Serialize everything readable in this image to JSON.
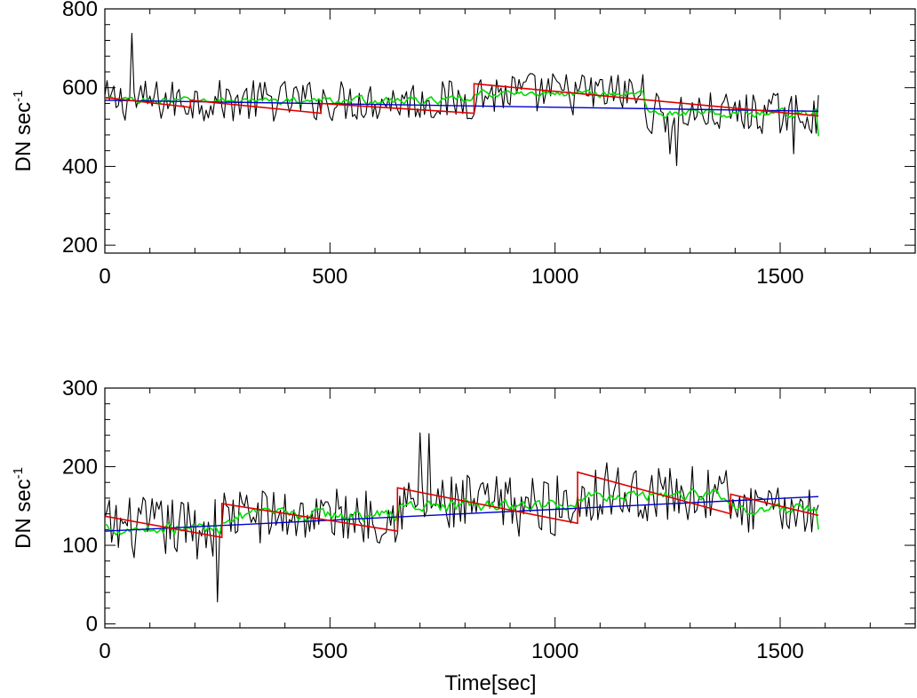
{
  "chart_data": [
    {
      "type": "line",
      "ylabel": "DN sec",
      "ylabel_sup": "-1",
      "xlabel": "",
      "xlim": [
        0,
        1800
      ],
      "ylim": [
        180,
        800
      ],
      "x_ticks": [
        0,
        500,
        1000,
        1500
      ],
      "x_tick_labels": [
        "0",
        "500",
        "1000",
        "1500"
      ],
      "y_ticks": [
        200,
        400,
        600,
        800
      ],
      "y_tick_labels": [
        "200",
        "400",
        "600",
        "800"
      ],
      "grid": false,
      "series": [
        {
          "color": "#000000",
          "style": "raw-noisy",
          "x_range": [
            0,
            1585
          ],
          "segments": [
            [
              0,
              820,
              567,
              33
            ],
            [
              820,
              1200,
              585,
              35
            ],
            [
              1200,
              1585,
              535,
              33
            ]
          ],
          "spikes": [
            [
              62,
              738
            ],
            [
              1270,
              402
            ],
            [
              1255,
              432
            ],
            [
              1530,
              432
            ]
          ]
        },
        {
          "color": "#00dd00",
          "style": "smoothed",
          "x_range": [
            0,
            1585
          ],
          "segments": [
            [
              0,
              820,
              567,
              12
            ],
            [
              820,
              1200,
              585,
              12
            ],
            [
              1200,
              1585,
              535,
              14
            ]
          ],
          "end_value": 477
        },
        {
          "color": "#0000cc",
          "style": "linear-fit",
          "x": [
            0,
            1585
          ],
          "y": [
            568,
            540
          ]
        },
        {
          "color": "#dd0000",
          "style": "piecewise-fit",
          "pieces": [
            [
              [
                0,
                575
              ],
              [
                190,
                550
              ]
            ],
            [
              [
                190,
                568
              ],
              [
                480,
                535
              ]
            ],
            [
              [
                480,
                560
              ],
              [
                820,
                535
              ]
            ],
            [
              [
                820,
                610
              ],
              [
                1585,
                528
              ]
            ]
          ]
        }
      ]
    },
    {
      "type": "line",
      "ylabel": "DN sec",
      "ylabel_sup": "-1",
      "xlabel": "Time[sec]",
      "xlim": [
        0,
        1800
      ],
      "ylim": [
        -5,
        300
      ],
      "x_ticks": [
        0,
        500,
        1000,
        1500
      ],
      "x_tick_labels": [
        "0",
        "500",
        "1000",
        "1500"
      ],
      "y_ticks": [
        0,
        100,
        200,
        300
      ],
      "y_tick_labels": [
        "0",
        "100",
        "200",
        "300"
      ],
      "grid": false,
      "series": [
        {
          "color": "#000000",
          "style": "raw-noisy",
          "x_range": [
            0,
            1585
          ],
          "segments": [
            [
              0,
              260,
              122,
              25
            ],
            [
              260,
              650,
              138,
              22
            ],
            [
              650,
              1050,
              150,
              25
            ],
            [
              1050,
              1390,
              165,
              22
            ],
            [
              1390,
              1585,
              145,
              18
            ]
          ],
          "spikes": [
            [
              250,
              28
            ],
            [
              700,
              243
            ],
            [
              718,
              242
            ],
            [
              1115,
              205
            ]
          ]
        },
        {
          "color": "#00dd00",
          "style": "smoothed",
          "x_range": [
            0,
            1585
          ],
          "segments": [
            [
              0,
              260,
              122,
              10
            ],
            [
              260,
              650,
              138,
              10
            ],
            [
              650,
              1050,
              150,
              10
            ],
            [
              1050,
              1390,
              165,
              10
            ],
            [
              1390,
              1585,
              145,
              9
            ]
          ],
          "end_value": 120
        },
        {
          "color": "#0000cc",
          "style": "linear-fit",
          "x": [
            0,
            1585
          ],
          "y": [
            118,
            162
          ]
        },
        {
          "color": "#dd0000",
          "style": "piecewise-fit",
          "pieces": [
            [
              [
                0,
                137
              ],
              [
                260,
                110
              ]
            ],
            [
              [
                260,
                153
              ],
              [
                650,
                118
              ]
            ],
            [
              [
                650,
                173
              ],
              [
                1050,
                128
              ]
            ],
            [
              [
                1050,
                193
              ],
              [
                1390,
                140
              ]
            ],
            [
              [
                1390,
                165
              ],
              [
                1585,
                138
              ]
            ]
          ]
        }
      ]
    }
  ]
}
